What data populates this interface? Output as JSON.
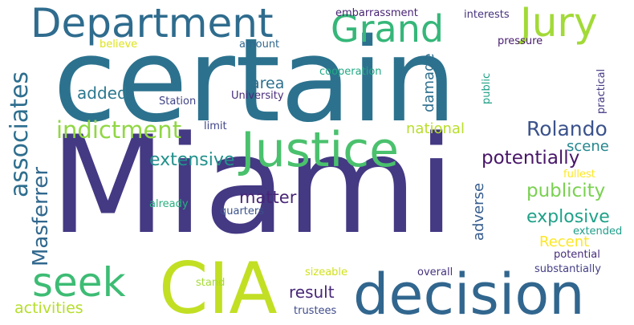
{
  "words": [
    {
      "text": "Miami",
      "color": "#443983"
    },
    {
      "text": "certain",
      "color": "#2c728e"
    },
    {
      "text": "decision",
      "color": "#31668e"
    },
    {
      "text": "CIA",
      "color": "#c2df23"
    },
    {
      "text": "Justice",
      "color": "#4ac16d"
    },
    {
      "text": "Department",
      "color": "#2f6c8e"
    },
    {
      "text": "Grand",
      "color": "#35b779"
    },
    {
      "text": "Jury",
      "color": "#a2da37"
    },
    {
      "text": "seek",
      "color": "#3dbc74"
    },
    {
      "text": "Rolando",
      "color": "#3b528b"
    },
    {
      "text": "indictment",
      "color": "#90d743"
    },
    {
      "text": "associates",
      "color": "#2e6e8e"
    },
    {
      "text": "Masferrer",
      "color": "#31688e"
    },
    {
      "text": "extensive",
      "color": "#21918c"
    },
    {
      "text": "potentially",
      "color": "#481668"
    },
    {
      "text": "publicity",
      "color": "#7ad151"
    },
    {
      "text": "explosive",
      "color": "#1fa188"
    },
    {
      "text": "matter",
      "color": "#482677"
    },
    {
      "text": "result",
      "color": "#482878"
    },
    {
      "text": "activities",
      "color": "#b5de2b"
    },
    {
      "text": "added",
      "color": "#2a788e"
    },
    {
      "text": "area",
      "color": "#2d708e"
    },
    {
      "text": "damage",
      "color": "#2e6f8e"
    },
    {
      "text": "national",
      "color": "#b8de29"
    },
    {
      "text": "scene",
      "color": "#24868e"
    },
    {
      "text": "adverse",
      "color": "#365c8d"
    },
    {
      "text": "Recent",
      "color": "#fde725"
    },
    {
      "text": "embarrassment",
      "color": "#482475"
    },
    {
      "text": "interests",
      "color": "#46337e"
    },
    {
      "text": "pressure",
      "color": "#481c6e"
    },
    {
      "text": "amount",
      "color": "#31688e"
    },
    {
      "text": "believe",
      "color": "#dde318"
    },
    {
      "text": "cooperation",
      "color": "#22a884"
    },
    {
      "text": "public",
      "color": "#1fa187"
    },
    {
      "text": "practical",
      "color": "#453882"
    },
    {
      "text": "Station",
      "color": "#414487"
    },
    {
      "text": "University",
      "color": "#472c7a"
    },
    {
      "text": "limit",
      "color": "#404688"
    },
    {
      "text": "fullest",
      "color": "#fde725"
    },
    {
      "text": "already",
      "color": "#29af7f"
    },
    {
      "text": "quarters",
      "color": "#3b528b"
    },
    {
      "text": "extended",
      "color": "#1f9e89"
    },
    {
      "text": "potential",
      "color": "#472d7b"
    },
    {
      "text": "substantially",
      "color": "#433e85"
    },
    {
      "text": "sizeable",
      "color": "#d0e11c"
    },
    {
      "text": "overall",
      "color": "#46327e"
    },
    {
      "text": "stand",
      "color": "#a5db36"
    },
    {
      "text": "trustees",
      "color": "#3e4a89"
    }
  ]
}
